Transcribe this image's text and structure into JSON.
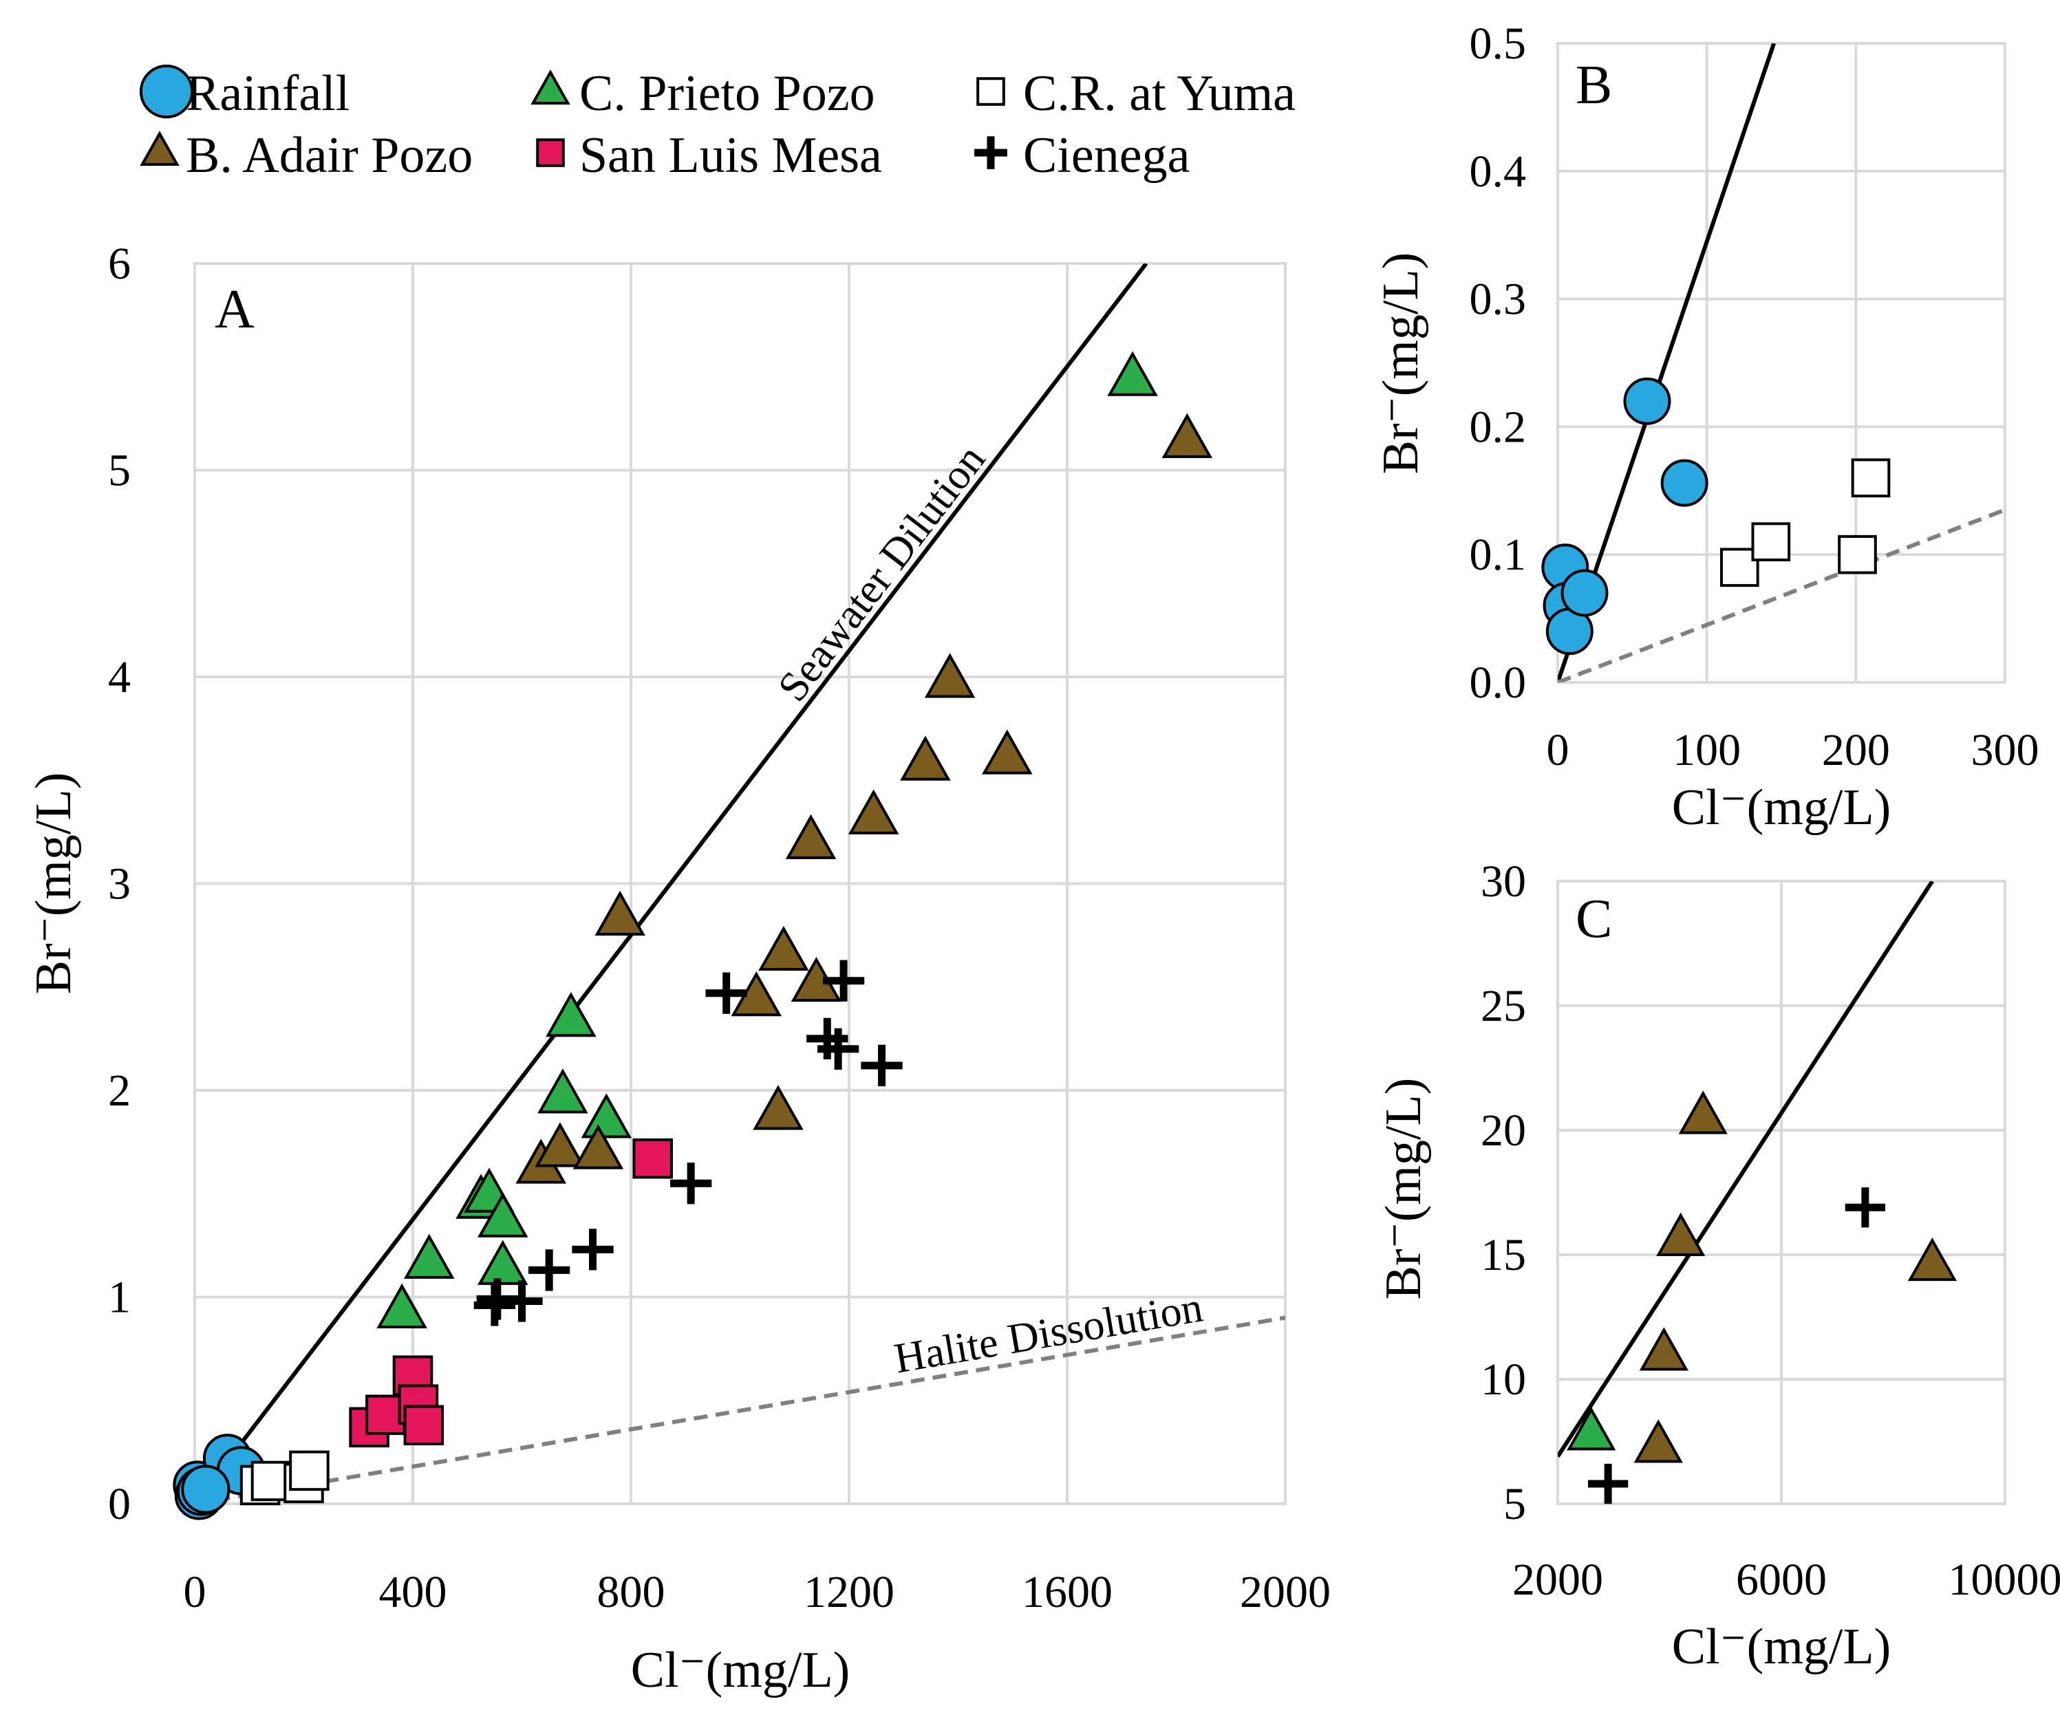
{
  "legend": [
    {
      "series": "Rainfall",
      "label": "Rainfall"
    },
    {
      "series": "C. Prieto Pozo",
      "label": "C. Prieto Pozo"
    },
    {
      "series": "C.R. at Yuma",
      "label": "C.R. at Yuma"
    },
    {
      "series": "B. Adair Pozo",
      "label": "B. Adair Pozo"
    },
    {
      "series": "San Luis Mesa",
      "label": "San Luis Mesa"
    },
    {
      "series": "Cienega",
      "label": "Cienega"
    }
  ],
  "colors": {
    "rainfall": "#29A8E0",
    "prieto": "#2BAE4A",
    "adair": "#7A5C1E",
    "mesa": "#E3165B",
    "yuma": "#FFFFFF",
    "cienega": "#000000",
    "grid": "#D9D9D9",
    "halite_line": "#808080"
  },
  "chart_data": [
    {
      "type": "scatter",
      "panel": "A",
      "xlabel": "Cl⁻(mg/L)",
      "ylabel": "Br⁻(mg/L)",
      "xlim": [
        0,
        2000
      ],
      "ylim": [
        0,
        6
      ],
      "xticks": [
        0,
        400,
        800,
        1200,
        1600,
        2000
      ],
      "yticks": [
        0,
        1,
        2,
        3,
        4,
        5,
        6
      ],
      "grid": true,
      "lines": [
        {
          "name": "Seawater Dilution",
          "label": "Seawater Dilution",
          "style": "solid",
          "points": [
            [
              0,
              0
            ],
            [
              1745,
              6
            ]
          ]
        },
        {
          "name": "Halite Dissolution",
          "label": "Halite Dissolution",
          "style": "dashed",
          "points": [
            [
              0,
              0
            ],
            [
              2000,
              0.9
            ]
          ]
        }
      ],
      "series": [
        {
          "name": "Rainfall",
          "points": [
            [
              5,
              0.09
            ],
            [
              8,
              0.04
            ],
            [
              60,
              0.22
            ],
            [
              85,
              0.16
            ],
            [
              12,
              0.06
            ],
            [
              20,
              0.07
            ]
          ]
        },
        {
          "name": "C.R. at Yuma",
          "points": [
            [
              120,
              0.09
            ],
            [
              140,
              0.11
            ],
            [
              200,
              0.1
            ],
            [
              210,
              0.16
            ]
          ]
        },
        {
          "name": "San Luis Mesa",
          "points": [
            [
              320,
              0.37
            ],
            [
              350,
              0.43
            ],
            [
              400,
              0.62
            ],
            [
              410,
              0.48
            ],
            [
              420,
              0.38
            ],
            [
              840,
              1.67
            ]
          ]
        },
        {
          "name": "C. Prieto Pozo",
          "points": [
            [
              380,
              0.93
            ],
            [
              430,
              1.17
            ],
            [
              525,
              1.46
            ],
            [
              540,
              1.49
            ],
            [
              565,
              1.14
            ],
            [
              565,
              1.37
            ],
            [
              675,
              1.97
            ],
            [
              690,
              2.34
            ],
            [
              755,
              1.85
            ],
            [
              1720,
              5.44
            ]
          ]
        },
        {
          "name": "B. Adair Pozo",
          "points": [
            [
              635,
              1.63
            ],
            [
              670,
              1.71
            ],
            [
              740,
              1.7
            ],
            [
              780,
              2.83
            ],
            [
              1030,
              2.44
            ],
            [
              1070,
              1.89
            ],
            [
              1080,
              2.66
            ],
            [
              1130,
              3.2
            ],
            [
              1140,
              2.51
            ],
            [
              1245,
              3.32
            ],
            [
              1340,
              3.58
            ],
            [
              1385,
              3.98
            ],
            [
              1490,
              3.61
            ],
            [
              1820,
              5.14
            ]
          ]
        },
        {
          "name": "Cienega",
          "points": [
            [
              550,
              0.96
            ],
            [
              555,
              0.99
            ],
            [
              600,
              0.98
            ],
            [
              650,
              1.13
            ],
            [
              730,
              1.23
            ],
            [
              910,
              1.55
            ],
            [
              975,
              2.47
            ],
            [
              1160,
              2.25
            ],
            [
              1180,
              2.2
            ],
            [
              1190,
              2.53
            ],
            [
              1260,
              2.12
            ]
          ]
        }
      ]
    },
    {
      "type": "scatter",
      "panel": "B",
      "xlabel": "Cl⁻(mg/L)",
      "ylabel": "Br⁻(mg/L)",
      "xlim": [
        0,
        300
      ],
      "ylim": [
        0,
        0.5
      ],
      "xticks": [
        0,
        100,
        200,
        300
      ],
      "yticks": [
        "0.0",
        "0.1",
        "0.2",
        "0.3",
        "0.4",
        "0.5"
      ],
      "grid": true,
      "lines": [
        {
          "name": "Seawater Dilution",
          "style": "solid",
          "points": [
            [
              0,
              0
            ],
            [
              145,
              0.5
            ]
          ]
        },
        {
          "name": "Halite Dissolution",
          "style": "dashed",
          "points": [
            [
              0,
              0
            ],
            [
              300,
              0.135
            ]
          ]
        }
      ],
      "series": [
        {
          "name": "Rainfall",
          "points": [
            [
              5,
              0.09
            ],
            [
              6,
              0.06
            ],
            [
              8,
              0.04
            ],
            [
              18,
              0.07
            ],
            [
              60,
              0.22
            ],
            [
              85,
              0.156
            ]
          ]
        },
        {
          "name": "C.R. at Yuma",
          "points": [
            [
              122,
              0.09
            ],
            [
              143,
              0.11
            ],
            [
              201,
              0.1
            ],
            [
              210,
              0.16
            ]
          ]
        }
      ]
    },
    {
      "type": "scatter",
      "panel": "C",
      "xlabel": "Cl⁻(mg/L)",
      "ylabel": "Br⁻(mg/L)",
      "xlim": [
        2000,
        10000
      ],
      "ylim": [
        5,
        30
      ],
      "xticks": [
        2000,
        6000,
        10000
      ],
      "yticks": [
        5,
        10,
        15,
        20,
        25,
        30
      ],
      "grid": true,
      "lines": [
        {
          "name": "Seawater Dilution",
          "style": "solid",
          "points": [
            [
              2000,
              6.9
            ],
            [
              8700,
              30
            ]
          ]
        }
      ],
      "series": [
        {
          "name": "C. Prieto Pozo",
          "points": [
            [
              2600,
              7.8
            ]
          ]
        },
        {
          "name": "B. Adair Pozo",
          "points": [
            [
              3800,
              7.3
            ],
            [
              3900,
              11.0
            ],
            [
              4200,
              15.6
            ],
            [
              4600,
              20.5
            ],
            [
              8700,
              14.6
            ]
          ]
        },
        {
          "name": "Cienega",
          "points": [
            [
              2900,
              5.8
            ],
            [
              7500,
              16.9
            ]
          ]
        }
      ]
    }
  ]
}
